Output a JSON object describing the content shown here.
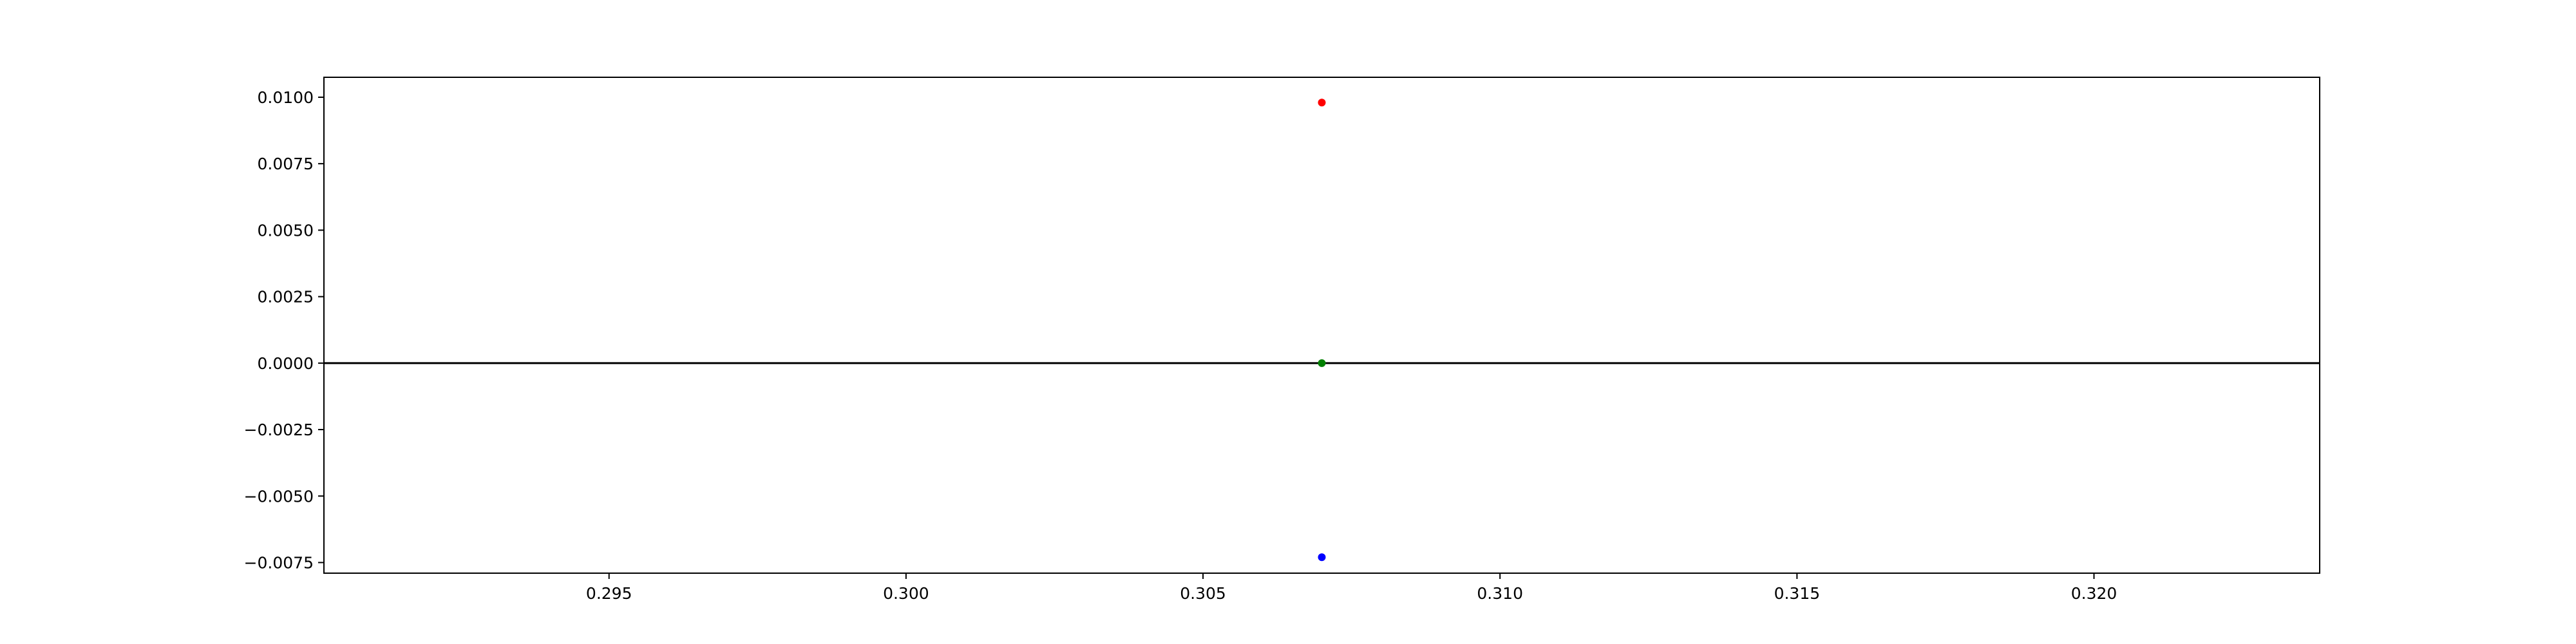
{
  "chart_data": {
    "type": "scatter",
    "title": "",
    "xlabel": "",
    "ylabel": "",
    "xlim": [
      0.2902,
      0.3238
    ],
    "ylim": [
      -0.0079,
      0.01075
    ],
    "xticks": [
      0.295,
      0.3,
      0.305,
      0.31,
      0.315,
      0.32
    ],
    "xtick_labels": [
      "0.295",
      "0.300",
      "0.305",
      "0.310",
      "0.315",
      "0.320"
    ],
    "yticks": [
      0.01,
      0.0075,
      0.005,
      0.0025,
      0.0,
      -0.0025,
      -0.005,
      -0.0075
    ],
    "ytick_labels": [
      "0.0100",
      "0.0075",
      "0.0050",
      "0.0025",
      "0.0000",
      "−0.0025",
      "−0.0050",
      "−0.0075"
    ],
    "grid": false,
    "legend": "none",
    "hline": 0.0,
    "points": [
      {
        "x": 0.307,
        "y": 0.0098,
        "color": "#ff0000"
      },
      {
        "x": 0.307,
        "y": 0.0,
        "color": "#008000"
      },
      {
        "x": 0.307,
        "y": -0.0073,
        "color": "#0000ff"
      }
    ]
  }
}
